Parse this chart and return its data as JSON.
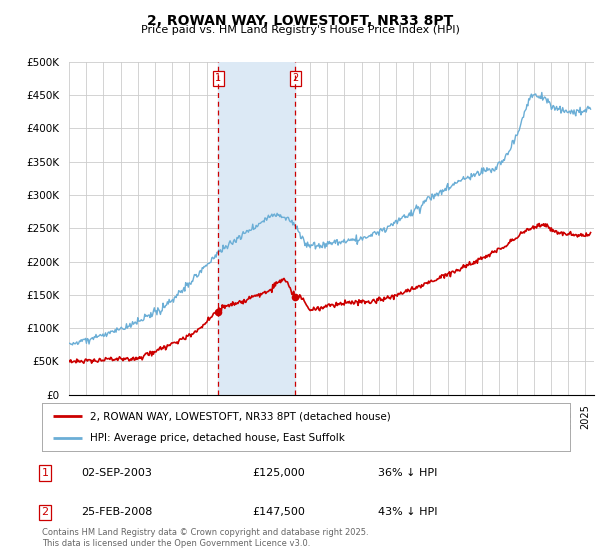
{
  "title": "2, ROWAN WAY, LOWESTOFT, NR33 8PT",
  "subtitle": "Price paid vs. HM Land Registry's House Price Index (HPI)",
  "ylim": [
    0,
    500000
  ],
  "yticks": [
    0,
    50000,
    100000,
    150000,
    200000,
    250000,
    300000,
    350000,
    400000,
    450000,
    500000
  ],
  "ytick_labels": [
    "£0",
    "£50K",
    "£100K",
    "£150K",
    "£200K",
    "£250K",
    "£300K",
    "£350K",
    "£400K",
    "£450K",
    "£500K"
  ],
  "xlim_start": 1995.0,
  "xlim_end": 2025.5,
  "hpi_color": "#6baed6",
  "price_color": "#cc0000",
  "shade_color": "#dce9f5",
  "sale1_x": 2003.67,
  "sale1_y": 125000,
  "sale2_x": 2008.15,
  "sale2_y": 147500,
  "legend_line1": "2, ROWAN WAY, LOWESTOFT, NR33 8PT (detached house)",
  "legend_line2": "HPI: Average price, detached house, East Suffolk",
  "table_row1": [
    "1",
    "02-SEP-2003",
    "£125,000",
    "36% ↓ HPI"
  ],
  "table_row2": [
    "2",
    "25-FEB-2008",
    "£147,500",
    "43% ↓ HPI"
  ],
  "footer": "Contains HM Land Registry data © Crown copyright and database right 2025.\nThis data is licensed under the Open Government Licence v3.0.",
  "background_color": "#ffffff",
  "grid_color": "#cccccc"
}
